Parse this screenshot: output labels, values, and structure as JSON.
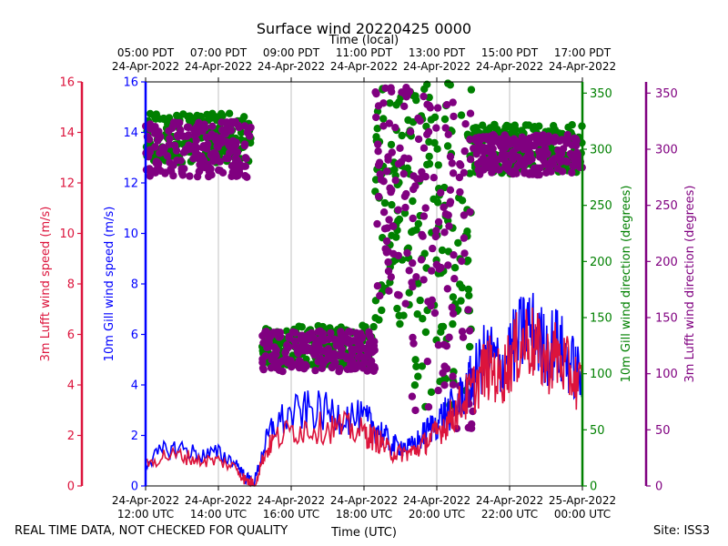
{
  "chart_data": {
    "type": "line+scatter",
    "title": "Surface wind 20220425 0000",
    "top_axis_label": "Time (local)",
    "bottom_axis_label": "Time (UTC)",
    "x_range_hours_utc": [
      12,
      24
    ],
    "bottom_ticks": [
      {
        "hour": 12,
        "line1": "24-Apr-2022",
        "line2": "12:00 UTC"
      },
      {
        "hour": 14,
        "line1": "24-Apr-2022",
        "line2": "14:00 UTC"
      },
      {
        "hour": 16,
        "line1": "24-Apr-2022",
        "line2": "16:00 UTC"
      },
      {
        "hour": 18,
        "line1": "24-Apr-2022",
        "line2": "18:00 UTC"
      },
      {
        "hour": 20,
        "line1": "24-Apr-2022",
        "line2": "20:00 UTC"
      },
      {
        "hour": 22,
        "line1": "24-Apr-2022",
        "line2": "22:00 UTC"
      },
      {
        "hour": 24,
        "line1": "25-Apr-2022",
        "line2": "00:00 UTC"
      }
    ],
    "top_ticks": [
      {
        "hour": 12,
        "line1": "05:00 PDT",
        "line2": "24-Apr-2022"
      },
      {
        "hour": 14,
        "line1": "07:00 PDT",
        "line2": "24-Apr-2022"
      },
      {
        "hour": 16,
        "line1": "09:00 PDT",
        "line2": "24-Apr-2022"
      },
      {
        "hour": 18,
        "line1": "11:00 PDT",
        "line2": "24-Apr-2022"
      },
      {
        "hour": 20,
        "line1": "13:00 PDT",
        "line2": "24-Apr-2022"
      },
      {
        "hour": 22,
        "line1": "15:00 PDT",
        "line2": "24-Apr-2022"
      },
      {
        "hour": 24,
        "line1": "17:00 PDT",
        "line2": "24-Apr-2022"
      }
    ],
    "axes": {
      "lufft_speed": {
        "label": "3m Lufft wind speed (m/s)",
        "range": [
          0,
          16
        ],
        "ticks": [
          0,
          2,
          4,
          6,
          8,
          10,
          12,
          14,
          16
        ],
        "color": "#dc143c"
      },
      "gill_speed": {
        "label": "10m Gill wind speed (m/s)",
        "range": [
          0,
          16
        ],
        "ticks": [
          0,
          2,
          4,
          6,
          8,
          10,
          12,
          14,
          16
        ],
        "color": "#0000ff"
      },
      "gill_dir": {
        "label": "10m Gill wind direction (degrees)",
        "range": [
          0,
          360
        ],
        "ticks": [
          0,
          50,
          100,
          150,
          200,
          250,
          300,
          350
        ],
        "color": "#008000"
      },
      "lufft_dir": {
        "label": "3m Lufft wind direction (degrees)",
        "range": [
          0,
          360
        ],
        "ticks": [
          0,
          50,
          100,
          150,
          200,
          250,
          300,
          350
        ],
        "color": "#800080"
      }
    },
    "series": [
      {
        "name": "10m Gill wind speed",
        "kind": "line",
        "axis": "gill_speed",
        "color": "#0000ff",
        "t": [
          12.0,
          12.5,
          13.0,
          13.5,
          14.0,
          14.5,
          14.75,
          15.0,
          15.25,
          15.5,
          16.0,
          16.5,
          17.0,
          17.5,
          18.0,
          18.25,
          18.5,
          18.75,
          19.0,
          19.25,
          19.5,
          19.75,
          20.0,
          20.25,
          20.5,
          20.75,
          21.0,
          21.25,
          21.5,
          21.75,
          22.0,
          22.25,
          22.5,
          22.75,
          23.0,
          23.25,
          23.5,
          23.75,
          24.0
        ],
        "v": [
          0.9,
          1.4,
          1.5,
          1.2,
          1.3,
          0.9,
          0.3,
          0.2,
          1.5,
          2.4,
          2.8,
          3.0,
          2.9,
          2.8,
          2.6,
          2.4,
          2.1,
          1.6,
          1.6,
          1.5,
          1.8,
          2.2,
          2.5,
          2.9,
          3.1,
          3.7,
          4.2,
          5.0,
          5.2,
          4.6,
          5.3,
          5.8,
          6.4,
          5.9,
          5.4,
          5.7,
          5.2,
          4.7,
          4.3
        ]
      },
      {
        "name": "3m Lufft wind speed",
        "kind": "line",
        "axis": "lufft_speed",
        "color": "#dc143c",
        "t": [
          12.0,
          12.5,
          13.0,
          13.5,
          14.0,
          14.5,
          14.75,
          15.0,
          15.25,
          15.5,
          16.0,
          16.5,
          17.0,
          17.5,
          18.0,
          18.25,
          18.5,
          18.75,
          19.0,
          19.25,
          19.5,
          19.75,
          20.0,
          20.25,
          20.5,
          20.75,
          21.0,
          21.25,
          21.5,
          21.75,
          22.0,
          22.25,
          22.5,
          22.75,
          23.0,
          23.25,
          23.5,
          23.75,
          24.0
        ],
        "v": [
          0.8,
          1.2,
          1.2,
          1.0,
          1.0,
          0.7,
          0.2,
          0.1,
          1.2,
          1.8,
          2.2,
          2.3,
          2.3,
          2.3,
          2.1,
          1.9,
          1.7,
          1.3,
          1.3,
          1.3,
          1.5,
          1.8,
          2.1,
          2.5,
          2.9,
          3.4,
          3.8,
          4.5,
          4.7,
          4.2,
          5.0,
          5.5,
          5.9,
          5.4,
          4.9,
          5.2,
          4.8,
          4.3,
          3.9
        ]
      },
      {
        "name": "10m Gill wind direction",
        "kind": "scatter",
        "axis": "gill_dir",
        "color": "#008000",
        "regimes": [
          {
            "t": [
              12.0,
              14.9
            ],
            "center": 310,
            "spread": 22
          },
          {
            "t": [
              15.2,
              18.3
            ],
            "center": 125,
            "spread": 18
          },
          {
            "t": [
              18.3,
              19.3
            ],
            "center": 250,
            "spread": 110
          },
          {
            "t": [
              19.3,
              21.0
            ],
            "center": 220,
            "spread": 150
          },
          {
            "t": [
              21.0,
              24.0
            ],
            "center": 300,
            "spread": 22
          }
        ]
      },
      {
        "name": "3m Lufft wind direction",
        "kind": "scatter",
        "axis": "lufft_dir",
        "color": "#800080",
        "regimes": [
          {
            "t": [
              12.0,
              14.9
            ],
            "center": 300,
            "spread": 25
          },
          {
            "t": [
              15.2,
              18.3
            ],
            "center": 120,
            "spread": 18
          },
          {
            "t": [
              18.3,
              19.3
            ],
            "center": 260,
            "spread": 110
          },
          {
            "t": [
              19.3,
              21.0
            ],
            "center": 200,
            "spread": 150
          },
          {
            "t": [
              21.0,
              24.0
            ],
            "center": 295,
            "spread": 18
          }
        ]
      }
    ]
  },
  "footer": {
    "note": "REAL TIME DATA, NOT CHECKED FOR QUALITY",
    "site": "Site: ISS3"
  }
}
